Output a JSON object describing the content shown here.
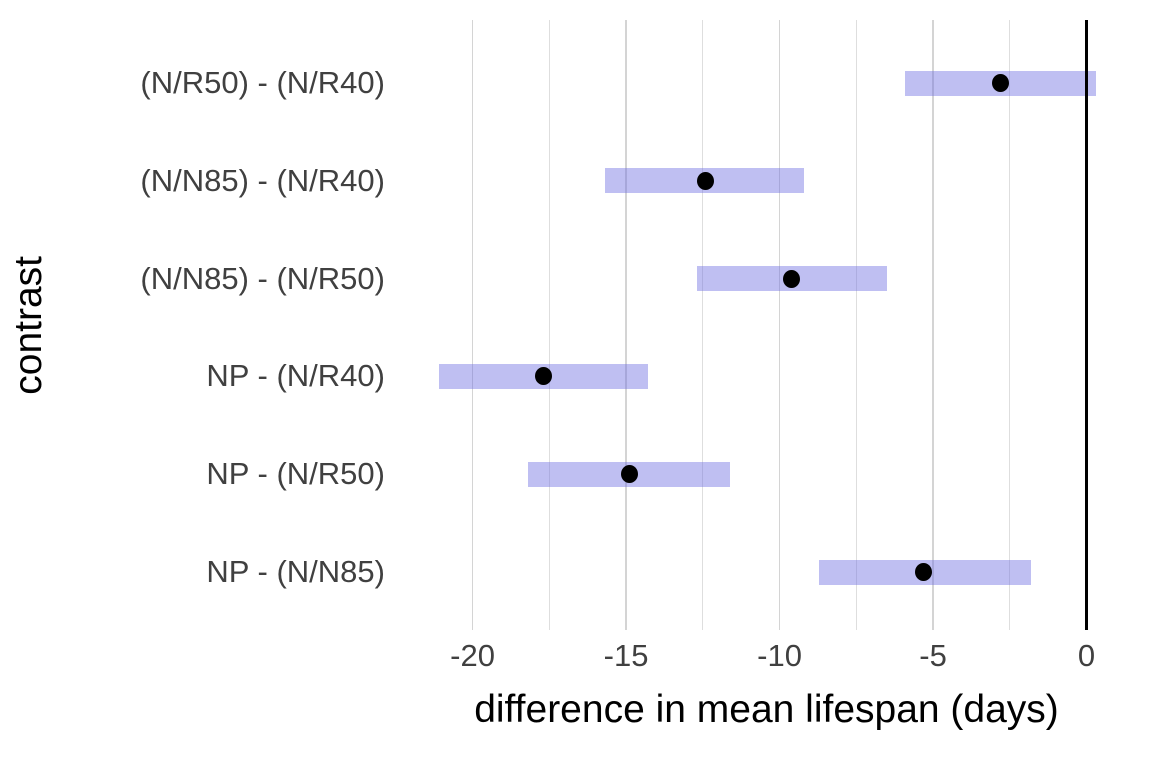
{
  "chart_data": {
    "type": "pointrange",
    "orientation": "horizontal",
    "title": "",
    "xlabel": "difference in mean lifespan (days)",
    "ylabel": "contrast",
    "categories": [
      "(N/R50) - (N/R40)",
      "(N/N85) - (N/R40)",
      "(N/N85) - (N/R50)",
      "NP - (N/R40)",
      "NP - (N/R50)",
      "NP - (N/N85)"
    ],
    "points": [
      {
        "contrast": "(N/R50) - (N/R40)",
        "lower": -5.9,
        "estimate": -2.8,
        "upper": 0.3
      },
      {
        "contrast": "(N/N85) - (N/R40)",
        "lower": -15.7,
        "estimate": -12.4,
        "upper": -9.2
      },
      {
        "contrast": "(N/N85) - (N/R50)",
        "lower": -12.7,
        "estimate": -9.6,
        "upper": -6.5
      },
      {
        "contrast": "NP - (N/R40)",
        "lower": -21.1,
        "estimate": -17.7,
        "upper": -14.3
      },
      {
        "contrast": "NP - (N/R50)",
        "lower": -18.2,
        "estimate": -14.9,
        "upper": -11.6
      },
      {
        "contrast": "NP - (N/N85)",
        "lower": -8.7,
        "estimate": -5.3,
        "upper": -1.8
      }
    ],
    "x_ticks": [
      -20,
      -15,
      -10,
      -5,
      0
    ],
    "x_tick_labels": [
      "-20",
      "-15",
      "-10",
      "-5",
      "0"
    ],
    "x_minor_gridlines": [
      -17.5,
      -12.5,
      -7.5,
      -2.5
    ],
    "xlim": [
      -22.2,
      1.35
    ],
    "reference_line_x": 0,
    "grid": "vertical-only",
    "legend": "none",
    "colors": {
      "interval_fill": "rgba(114,114,226,0.45)",
      "interval_fill_effective": "#bfc0f2",
      "point": "#000000",
      "reference_line": "#000000",
      "grid_major": "#d4d4d4",
      "grid_minor": "#dedede",
      "tick_label": "#404040",
      "axis_title": "#000000",
      "background": "#ffffff"
    }
  }
}
